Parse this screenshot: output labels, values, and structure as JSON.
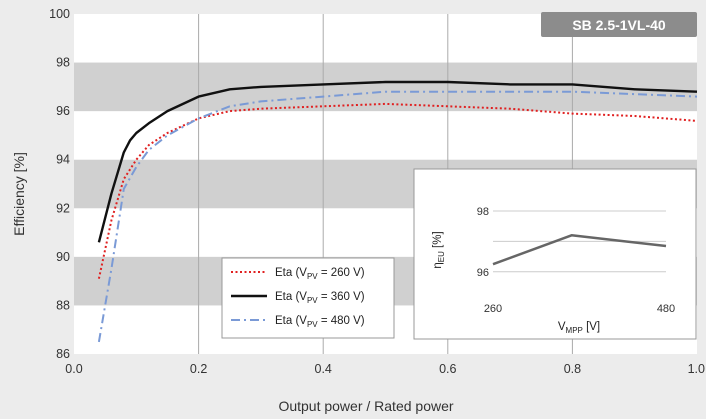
{
  "colors": {
    "background": "#ececec",
    "band": "#d0d0d0",
    "plot_bg": "#ffffff",
    "grid": "#aaaaaa",
    "model_badge": "#8c8c8c",
    "inset_line": "#666666"
  },
  "model_label": "SB 2.5-1VL-40",
  "chart_data": [
    {
      "type": "line",
      "xlabel": "Output power / Rated power",
      "ylabel": "Efficiency [%]",
      "xlim": [
        0.0,
        1.0
      ],
      "ylim": [
        86,
        100
      ],
      "x_ticks": [
        "0.0",
        "0.2",
        "0.4",
        "0.6",
        "0.8",
        "1.0"
      ],
      "y_ticks": [
        "86",
        "88",
        "90",
        "92",
        "94",
        "96",
        "98",
        "100"
      ],
      "grid": "vertical lines with alternating horizontal grey bands",
      "legend_position": "bottom-left",
      "series": [
        {
          "name": "Eta (V",
          "sub": "PV",
          "suffix": " = 260 V)",
          "color": "#e02020",
          "style": "dotted",
          "x": [
            0.04,
            0.06,
            0.08,
            0.1,
            0.12,
            0.15,
            0.2,
            0.25,
            0.3,
            0.4,
            0.5,
            0.6,
            0.7,
            0.8,
            0.9,
            1.0
          ],
          "y": [
            89.1,
            91.5,
            93.2,
            94.0,
            94.6,
            95.1,
            95.7,
            96.0,
            96.1,
            96.2,
            96.3,
            96.2,
            96.1,
            95.9,
            95.8,
            95.6
          ]
        },
        {
          "name": "Eta (V",
          "sub": "PV",
          "suffix": " = 360 V)",
          "color": "#111111",
          "style": "solid",
          "x": [
            0.04,
            0.06,
            0.08,
            0.09,
            0.1,
            0.12,
            0.15,
            0.2,
            0.25,
            0.3,
            0.4,
            0.5,
            0.6,
            0.7,
            0.8,
            0.9,
            1.0
          ],
          "y": [
            90.6,
            92.6,
            94.3,
            94.8,
            95.1,
            95.5,
            96.0,
            96.6,
            96.9,
            97.0,
            97.1,
            97.2,
            97.2,
            97.1,
            97.1,
            96.9,
            96.8
          ]
        },
        {
          "name": "Eta (V",
          "sub": "PV",
          "suffix": " = 480 V)",
          "color": "#7a9ad6",
          "style": "dashdot",
          "x": [
            0.04,
            0.06,
            0.08,
            0.1,
            0.12,
            0.15,
            0.2,
            0.25,
            0.3,
            0.4,
            0.5,
            0.6,
            0.7,
            0.8,
            0.9,
            1.0
          ],
          "y": [
            86.5,
            89.5,
            92.8,
            93.7,
            94.4,
            95.0,
            95.7,
            96.2,
            96.4,
            96.6,
            96.8,
            96.8,
            96.8,
            96.8,
            96.7,
            96.6
          ]
        }
      ]
    },
    {
      "type": "line",
      "xlabel": "V",
      "xlabel_sub": "MPP",
      "xlabel_suffix": " [V]",
      "ylabel": "η",
      "ylabel_sub": "EU",
      "ylabel_suffix": " [%]",
      "xlim": [
        260,
        480
      ],
      "ylim": [
        95.5,
        98
      ],
      "x_ticks": [
        "260",
        "480"
      ],
      "y_ticks": [
        "96",
        "98"
      ],
      "series": [
        {
          "color": "#666666",
          "x": [
            260,
            360,
            480
          ],
          "y": [
            96.25,
            97.2,
            96.85
          ]
        }
      ]
    }
  ]
}
